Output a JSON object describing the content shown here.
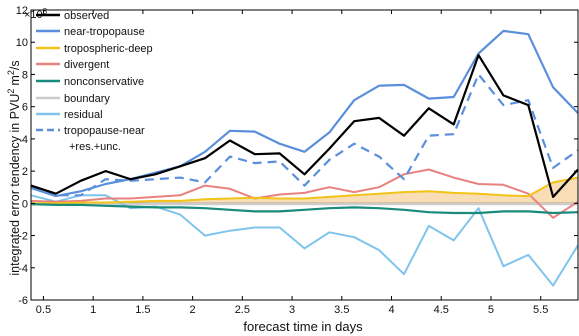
{
  "chart_data": {
    "type": "line",
    "xlabel": "forecast time in days",
    "ylabel": "integrated error tendency in PVU",
    "ylabel_sup": "2",
    "ylabel_unit": "m",
    "ylabel_unit_sup": "2",
    "ylabel_tail": "/s",
    "y_multiplier_base": "×10",
    "y_multiplier_exp": "8",
    "xlim": [
      0.375,
      5.875
    ],
    "ylim": [
      -6,
      12
    ],
    "x_ticks": [
      "0.5",
      "1",
      "1.5",
      "2",
      "2.5",
      "3",
      "3.5",
      "4",
      "4.5",
      "5",
      "5.5"
    ],
    "y_ticks": [
      "-6",
      "-4",
      "-2",
      "0",
      "2",
      "4",
      "6",
      "8",
      "10",
      "12"
    ],
    "x": [
      0.375,
      0.625,
      0.875,
      1.125,
      1.375,
      1.625,
      1.875,
      2.125,
      2.375,
      2.625,
      2.875,
      3.125,
      3.375,
      3.625,
      3.875,
      4.125,
      4.375,
      4.625,
      4.875,
      5.125,
      5.375,
      5.625,
      5.875
    ],
    "legend_position": "top-left",
    "series": [
      {
        "name": "observed",
        "color": "#000000",
        "style": "solid",
        "width": 2.2,
        "values": [
          1.1,
          0.6,
          1.4,
          2.0,
          1.5,
          1.8,
          2.3,
          2.8,
          3.9,
          3.05,
          3.1,
          1.8,
          3.4,
          5.1,
          5.3,
          4.2,
          5.9,
          4.9,
          9.2,
          6.7,
          6.1,
          0.4,
          2.1
        ]
      },
      {
        "name": "near-tropopause",
        "color": "#5B8FDB",
        "style": "solid",
        "width": 2.2,
        "values": [
          0.95,
          0.45,
          0.75,
          1.2,
          1.5,
          1.9,
          2.3,
          3.2,
          4.5,
          4.45,
          3.7,
          3.2,
          4.4,
          6.4,
          7.3,
          7.35,
          6.5,
          6.6,
          9.3,
          10.7,
          10.5,
          7.2,
          5.6
        ]
      },
      {
        "name": "tropospheric-deep",
        "color": "#F2C318",
        "style": "solid",
        "width": 2.0,
        "values": [
          0.0,
          0.0,
          0.05,
          0.05,
          0.1,
          0.15,
          0.15,
          0.25,
          0.3,
          0.35,
          0.3,
          0.3,
          0.4,
          0.5,
          0.6,
          0.7,
          0.75,
          0.65,
          0.6,
          0.5,
          0.45,
          1.3,
          1.6
        ]
      },
      {
        "name": "divergent",
        "color": "#E8827E",
        "style": "solid",
        "width": 2.0,
        "values": [
          0.15,
          0.1,
          0.15,
          0.3,
          0.3,
          0.4,
          0.5,
          1.1,
          0.9,
          0.3,
          0.55,
          0.65,
          1.0,
          0.7,
          1.0,
          1.8,
          2.1,
          1.6,
          1.2,
          1.15,
          0.6,
          -0.9,
          0.1
        ]
      },
      {
        "name": "nonconservative",
        "color": "#1A8A7A",
        "style": "solid",
        "width": 2.2,
        "values": [
          -0.05,
          -0.1,
          -0.1,
          -0.15,
          -0.2,
          -0.25,
          -0.25,
          -0.3,
          -0.4,
          -0.5,
          -0.5,
          -0.4,
          -0.3,
          -0.25,
          -0.3,
          -0.4,
          -0.55,
          -0.6,
          -0.6,
          -0.5,
          -0.5,
          -0.6,
          -0.55
        ]
      },
      {
        "name": "boundary",
        "color": "#CCCCCC",
        "style": "solid",
        "width": 2.2,
        "values": [
          -0.05,
          -0.05,
          -0.05,
          -0.05,
          -0.05,
          -0.05,
          -0.05,
          -0.05,
          -0.05,
          -0.05,
          -0.05,
          -0.05,
          -0.05,
          -0.05,
          -0.05,
          -0.05,
          -0.05,
          -0.05,
          -0.05,
          -0.05,
          -0.05,
          -0.05,
          -0.05
        ]
      },
      {
        "name": "residual",
        "color": "#7FC4EC",
        "style": "solid",
        "width": 2.0,
        "values": [
          0.5,
          0.1,
          0.5,
          0.5,
          -0.3,
          -0.2,
          -0.7,
          -2.0,
          -1.7,
          -1.5,
          -1.5,
          -2.8,
          -1.8,
          -2.1,
          -2.9,
          -4.4,
          -1.4,
          -2.3,
          -0.3,
          -3.9,
          -3.2,
          -5.1,
          -2.6
        ]
      },
      {
        "name": "tropopause-near",
        "name_line2": "+res.+unc.",
        "color": "#5B8FDB",
        "style": "dashed",
        "width": 2.2,
        "values": [
          1.0,
          0.5,
          0.5,
          1.5,
          1.4,
          1.5,
          1.6,
          1.3,
          2.9,
          2.5,
          2.6,
          1.1,
          2.7,
          3.7,
          2.9,
          1.5,
          4.2,
          4.3,
          8.0,
          6.1,
          6.4,
          2.2,
          3.3
        ]
      }
    ],
    "bands": [
      {
        "of": "near-tropopause",
        "color": "#B9D3F2",
        "lower": [
          0.95,
          0.45,
          0.75,
          1.2,
          1.5,
          1.9,
          2.3,
          3.2,
          4.5,
          4.45,
          3.7,
          3.2,
          4.4,
          6.4,
          7.3,
          7.35,
          6.5,
          6.6,
          9.3,
          10.7,
          10.5,
          7.2,
          5.6
        ],
        "upper": [
          0.95,
          0.45,
          0.75,
          1.2,
          1.5,
          1.9,
          2.3,
          3.2,
          4.5,
          4.45,
          3.7,
          3.2,
          4.4,
          6.4,
          7.3,
          7.35,
          6.5,
          6.6,
          9.3,
          10.7,
          10.5,
          7.2,
          5.6
        ]
      },
      {
        "of": "tropospheric-deep",
        "color": "#F8DDB6",
        "lower": [
          0.0,
          0.0,
          0.0,
          0.0,
          0.0,
          0.0,
          0.0,
          0.0,
          0.0,
          0.0,
          0.0,
          0.0,
          0.0,
          0.0,
          0.0,
          0.0,
          0.0,
          0.0,
          0.0,
          0.0,
          0.0,
          0.0,
          0.0
        ],
        "upper": [
          0.0,
          0.0,
          0.05,
          0.05,
          0.1,
          0.15,
          0.15,
          0.25,
          0.3,
          0.35,
          0.3,
          0.3,
          0.4,
          0.5,
          0.6,
          0.7,
          0.75,
          0.65,
          0.6,
          0.5,
          0.45,
          1.3,
          1.6
        ]
      }
    ]
  }
}
